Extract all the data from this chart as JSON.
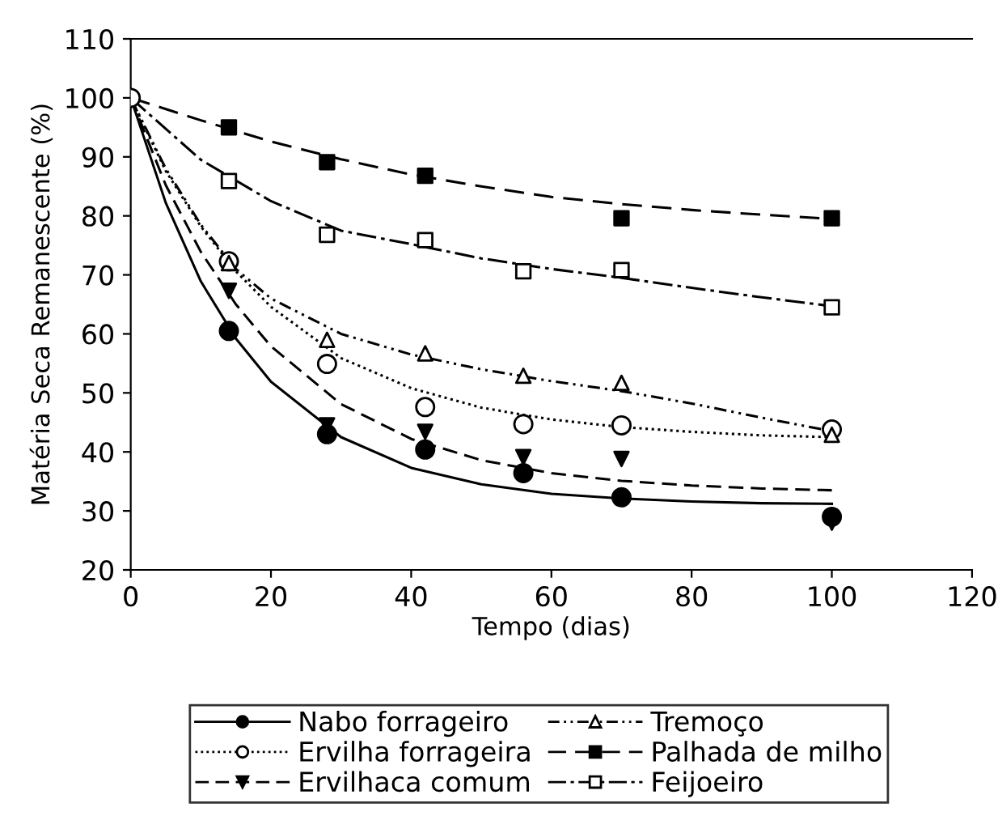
{
  "chart_data": {
    "type": "scatter",
    "xlabel": "Tempo (dias)",
    "ylabel": "Matéria Seca Remanescente (%)",
    "xlim": [
      0,
      120
    ],
    "xticks": [
      0,
      20,
      40,
      60,
      80,
      100,
      120
    ],
    "ylim": [
      20,
      110
    ],
    "yticks": [
      20,
      30,
      40,
      50,
      60,
      70,
      80,
      90,
      100,
      110
    ],
    "grid": false,
    "legend": "bottom",
    "series": [
      {
        "name": "Nabo forrageiro",
        "marker": "circle",
        "line_style": "solid",
        "color": "#000000",
        "x": [
          14,
          28,
          42,
          56,
          70,
          100
        ],
        "values": [
          60.5,
          43,
          40.4,
          36.4,
          32.3,
          29
        ]
      },
      {
        "name": "Ervilha forrageira",
        "marker": "circle",
        "line_style": "dotted",
        "color": "#000000",
        "x": [
          0,
          14,
          28,
          42,
          56,
          70,
          100
        ],
        "values": [
          100,
          72.3,
          54.9,
          47.6,
          44.7,
          44.5,
          43.8
        ]
      },
      {
        "name": "Ervilhaca comum",
        "marker": "triangle",
        "line_style": "dashed",
        "color": "#000000",
        "x": [
          14,
          28,
          42,
          56,
          70,
          100
        ],
        "values": [
          67.3,
          44.5,
          43.4,
          39.1,
          38.8,
          28
        ]
      },
      {
        "name": "Tremoço",
        "marker": "triangle",
        "line_style": "dashdotdot",
        "color": "#000000",
        "x": [
          14,
          28,
          42,
          56,
          70,
          100
        ],
        "values": [
          72,
          59,
          56.7,
          52.9,
          51.7,
          42.9
        ]
      },
      {
        "name": "Palhada de milho",
        "marker": "square",
        "line_style": "longdash",
        "color": "#000000",
        "x": [
          14,
          28,
          42,
          70,
          100
        ],
        "values": [
          95,
          89.1,
          86.8,
          79.6,
          79.6
        ]
      },
      {
        "name": "Feijoeiro",
        "marker": "square",
        "line_style": "dashdot",
        "color": "#000000",
        "x": [
          14,
          28,
          42,
          56,
          70,
          100
        ],
        "values": [
          85.9,
          76.8,
          75.9,
          70.6,
          70.8,
          64.5
        ]
      },
      {
        "type": "line",
        "line_style": "solid",
        "color": "#000000",
        "x": [
          0,
          5,
          10,
          15,
          20,
          30,
          40,
          50,
          60,
          70,
          80,
          90,
          100
        ],
        "values": [
          100,
          82.2,
          68.9,
          59.2,
          51.9,
          42.5,
          37.3,
          34.5,
          32.9,
          32.1,
          31.6,
          31.3,
          31.2
        ]
      },
      {
        "type": "line",
        "line_style": "dotted",
        "color": "#000000",
        "x": [
          0,
          5,
          10,
          15,
          20,
          30,
          40,
          50,
          60,
          70,
          80,
          90,
          100
        ],
        "values": [
          100,
          87.6,
          78.2,
          70.6,
          64.6,
          55.9,
          50.8,
          47.5,
          45.5,
          44.2,
          43.4,
          42.8,
          42.5
        ]
      },
      {
        "type": "line",
        "line_style": "dashed",
        "color": "#000000",
        "x": [
          0,
          5,
          10,
          15,
          20,
          30,
          40,
          50,
          60,
          70,
          80,
          90,
          100
        ],
        "values": [
          100,
          85.2,
          73.9,
          65,
          57.9,
          48.1,
          42.2,
          38.6,
          36.4,
          35.1,
          34.3,
          33.8,
          33.5
        ]
      },
      {
        "type": "line",
        "line_style": "dashdotdot",
        "color": "#000000",
        "x": [
          0,
          5,
          10,
          15,
          20,
          30,
          40,
          50,
          60,
          70,
          80,
          90,
          100
        ],
        "values": [
          100,
          88,
          78.5,
          71,
          66,
          60,
          56.5,
          54,
          52,
          50.3,
          48.2,
          45.8,
          43.5
        ]
      },
      {
        "type": "line",
        "line_style": "longdash",
        "color": "#000000",
        "x": [
          0,
          10,
          20,
          30,
          40,
          50,
          60,
          70,
          80,
          90,
          100
        ],
        "values": [
          100,
          96.2,
          92.6,
          89.6,
          87,
          85,
          83.2,
          82,
          81,
          80.2,
          79.5
        ]
      },
      {
        "type": "line",
        "line_style": "dashdot",
        "color": "#000000",
        "x": [
          0,
          10,
          20,
          30,
          40,
          50,
          60,
          70,
          80,
          90,
          100
        ],
        "values": [
          100,
          89.5,
          82.5,
          77.5,
          75.2,
          72.8,
          71,
          69.5,
          67.8,
          66.2,
          64.7
        ]
      }
    ]
  }
}
